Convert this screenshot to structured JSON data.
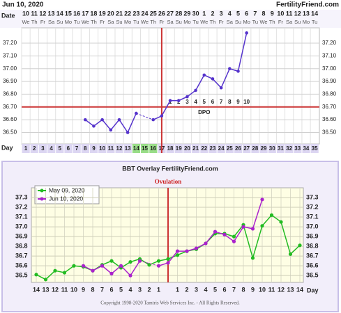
{
  "chart_data": [
    {
      "type": "line",
      "title": "Jun 10, 2020",
      "site": "FertilityFriend.com",
      "date_label": "Date",
      "day_label": "Day",
      "categories": [
        "10",
        "11",
        "12",
        "13",
        "14",
        "15",
        "16",
        "17",
        "18",
        "19",
        "20",
        "21",
        "22",
        "23",
        "24",
        "25",
        "26",
        "27",
        "28",
        "29",
        "30",
        "1",
        "2",
        "3",
        "4",
        "5",
        "6",
        "7",
        "8",
        "9",
        "10",
        "11",
        "12",
        "13",
        "14"
      ],
      "weekdays": [
        "We",
        "Th",
        "Fr",
        "Sa",
        "Su",
        "Mo",
        "Tu",
        "We",
        "Th",
        "Fr",
        "Sa",
        "Su",
        "Mo",
        "Tu",
        "We",
        "Th",
        "Fr",
        "Sa",
        "Su",
        "Mo",
        "Tu",
        "We",
        "Th",
        "Fr",
        "Sa",
        "Su",
        "Mo",
        "Tu",
        "We",
        "Th",
        "Fr",
        "Sa",
        "Su",
        "Mo",
        "Tu"
      ],
      "days": [
        1,
        2,
        3,
        4,
        5,
        6,
        7,
        8,
        9,
        10,
        11,
        12,
        13,
        14,
        15,
        16,
        17,
        18,
        19,
        20,
        21,
        22,
        23,
        24,
        25,
        26,
        27,
        28,
        29,
        30,
        31,
        32,
        33,
        34,
        35
      ],
      "values": [
        null,
        null,
        null,
        null,
        null,
        null,
        null,
        36.6,
        36.55,
        36.6,
        36.52,
        36.6,
        36.5,
        36.65,
        null,
        36.6,
        36.63,
        36.75,
        36.75,
        36.78,
        36.83,
        36.95,
        36.92,
        36.85,
        37.0,
        36.98,
        37.28,
        null,
        null,
        null,
        null,
        null,
        null,
        null,
        null
      ],
      "color": "#5533cc",
      "ylim": [
        36.41,
        37.32
      ],
      "yticks": [
        {
          "value": 36.5,
          "label": "36.50"
        },
        {
          "value": 36.6,
          "label": "36.60"
        },
        {
          "value": 36.7,
          "label": "36.70"
        },
        {
          "value": 36.8,
          "label": "36.80"
        },
        {
          "value": 36.9,
          "label": "36.90"
        },
        {
          "value": 37.0,
          "label": "37.00"
        },
        {
          "value": 37.1,
          "label": "37.10"
        },
        {
          "value": 37.2,
          "label": "37.20"
        }
      ],
      "coverline": 36.7,
      "ovulation_day": 17,
      "dpo_label": "DPO",
      "dpo": [
        1,
        2,
        3,
        4,
        5,
        6,
        7,
        8,
        9,
        10
      ],
      "grid": true
    },
    {
      "type": "line",
      "title": "BBT Overlay FertilityFriend.com",
      "annotation": "Ovulation",
      "x_label": "Day",
      "categories": [
        "14",
        "13",
        "12",
        "11",
        "10",
        "9",
        "8",
        "7",
        "6",
        "5",
        "4",
        "3",
        "2",
        "1",
        null,
        "1",
        "2",
        "3",
        "4",
        "5",
        "6",
        "7",
        "8",
        "9",
        "10",
        "11",
        "12",
        "13",
        "14"
      ],
      "series": [
        {
          "name": "May 09, 2020",
          "color": "#22bb22",
          "values": [
            36.51,
            36.46,
            36.55,
            36.53,
            36.6,
            36.59,
            36.55,
            36.61,
            36.65,
            36.58,
            36.64,
            36.67,
            36.61,
            36.65,
            36.67,
            36.71,
            36.75,
            36.77,
            36.83,
            36.93,
            36.93,
            36.9,
            37.02,
            36.68,
            37.01,
            37.12,
            37.05,
            36.72,
            36.81
          ]
        },
        {
          "name": "Jun 10, 2020",
          "color": "#aa22cc",
          "values": [
            null,
            null,
            null,
            null,
            null,
            36.6,
            36.55,
            36.6,
            36.52,
            36.6,
            36.5,
            36.65,
            null,
            36.6,
            36.63,
            36.75,
            36.75,
            36.78,
            36.83,
            36.95,
            36.92,
            36.85,
            37.0,
            36.98,
            37.28,
            null,
            null,
            null,
            null
          ]
        }
      ],
      "ylim": [
        36.43,
        37.4
      ],
      "yticks": [
        36.5,
        36.6,
        36.7,
        36.8,
        36.9,
        {
          "value": 37.0,
          "label": "37.0"
        },
        37.1,
        37.2,
        37.3
      ],
      "copyright": "Copyright 1998-2020 Tamtris Web Services Inc. - All Rights Reserved.",
      "grid": true
    }
  ]
}
